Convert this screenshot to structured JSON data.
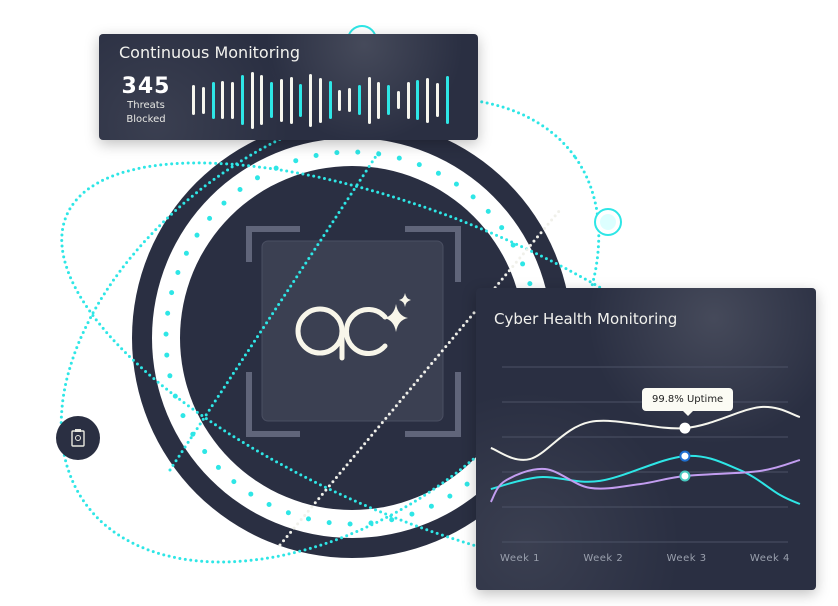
{
  "colors": {
    "dark": "#2a2f42",
    "cyan": "#2ee6e6",
    "white": "#f6f6ee",
    "purple": "#c29df0",
    "grid": "#4c5266"
  },
  "center": {
    "logo_icon": "ac-sparkle-logo"
  },
  "side_icon": "clipboard-icon",
  "continuous_monitoring": {
    "title": "Continuous Monitoring",
    "count": "345",
    "label_line1": "Threats",
    "label_line2": "Blocked",
    "bars": [
      {
        "level": 0.3,
        "color": "white"
      },
      {
        "level": 0.27,
        "color": "white"
      },
      {
        "level": 0.37,
        "color": "cyan"
      },
      {
        "level": 0.38,
        "color": "white"
      },
      {
        "level": 0.37,
        "color": "white"
      },
      {
        "level": 0.5,
        "color": "cyan"
      },
      {
        "level": 0.57,
        "color": "white"
      },
      {
        "level": 0.5,
        "color": "white"
      },
      {
        "level": 0.36,
        "color": "cyan"
      },
      {
        "level": 0.43,
        "color": "white"
      },
      {
        "level": 0.47,
        "color": "white"
      },
      {
        "level": 0.33,
        "color": "cyan"
      },
      {
        "level": 0.53,
        "color": "white"
      },
      {
        "level": 0.45,
        "color": "white"
      },
      {
        "level": 0.38,
        "color": "cyan"
      },
      {
        "level": 0.21,
        "color": "white"
      },
      {
        "level": 0.24,
        "color": "white"
      },
      {
        "level": 0.3,
        "color": "cyan"
      },
      {
        "level": 0.47,
        "color": "white"
      },
      {
        "level": 0.37,
        "color": "white"
      },
      {
        "level": 0.3,
        "color": "cyan"
      },
      {
        "level": 0.18,
        "color": "white"
      },
      {
        "level": 0.37,
        "color": "white"
      },
      {
        "level": 0.4,
        "color": "cyan"
      },
      {
        "level": 0.45,
        "color": "white"
      },
      {
        "level": 0.34,
        "color": "white"
      },
      {
        "level": 0.48,
        "color": "cyan"
      }
    ]
  },
  "cyber_health": {
    "title": "Cyber Health Monitoring",
    "tooltip": "99.8% Uptime",
    "chart_data": {
      "type": "line",
      "categories": [
        "Week 1",
        "Week 2",
        "Week 3",
        "Week 4"
      ],
      "ylim": [
        0,
        100
      ],
      "grid": true,
      "series": [
        {
          "color": "white",
          "points": [
            [
              0.65,
              53.7
            ],
            [
              1.12,
              47.4
            ],
            [
              1.84,
              68.6
            ],
            [
              2.98,
              65.1
            ],
            [
              3.88,
              77.1
            ],
            [
              4.36,
              71.4
            ]
          ],
          "marker_at": 2.98
        },
        {
          "color": "cyan",
          "points": [
            [
              0.65,
              30.3
            ],
            [
              1.24,
              37.1
            ],
            [
              1.96,
              34.9
            ],
            [
              2.98,
              49.1
            ],
            [
              3.64,
              41.1
            ],
            [
              4.12,
              26.9
            ],
            [
              4.36,
              21.7
            ]
          ],
          "marker_at": 2.98
        },
        {
          "color": "purple",
          "points": [
            [
              0.65,
              22.9
            ],
            [
              0.82,
              34.9
            ],
            [
              1.3,
              41.7
            ],
            [
              1.84,
              30.9
            ],
            [
              2.44,
              33.1
            ],
            [
              2.98,
              37.7
            ],
            [
              3.88,
              40.6
            ],
            [
              4.36,
              46.9
            ]
          ],
          "marker_at": 2.98
        }
      ]
    }
  }
}
